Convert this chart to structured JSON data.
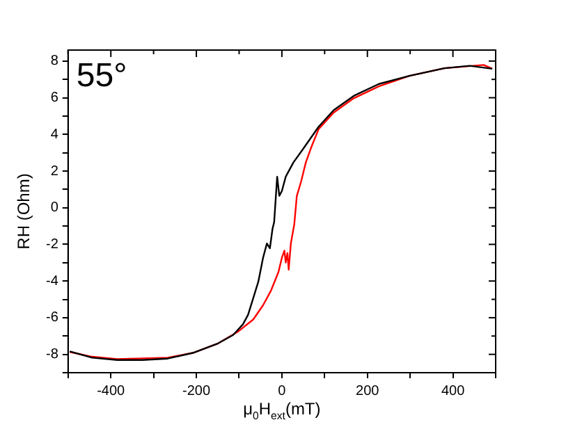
{
  "chart_data": {
    "type": "line",
    "xlabel": "μ$_{0}$H$_{ext}$(mT)",
    "ylabel": "RH (Ohm)",
    "annotations": [
      "55°"
    ],
    "xlim": [
      -500,
      500
    ],
    "xticks": [
      {
        "value": -500,
        "label": null
      },
      -400,
      {
        "value": -300,
        "label": null
      },
      -200,
      {
        "value": -100,
        "label": null
      },
      0,
      {
        "value": 100,
        "label": null
      },
      200,
      {
        "value": 300,
        "label": null
      },
      400,
      {
        "value": 500,
        "label": null
      }
    ],
    "ylim": [
      -9,
      8.6
    ],
    "yticks": [
      {
        "value": -9,
        "label": null
      },
      -8,
      {
        "value": -7,
        "label": null
      },
      -6,
      {
        "value": -5,
        "label": null
      },
      -4,
      {
        "value": -3,
        "label": null
      },
      -2,
      {
        "value": -1,
        "label": null
      },
      0,
      {
        "value": 1,
        "label": null
      },
      2,
      {
        "value": 3,
        "label": null
      },
      4,
      {
        "value": 5,
        "label": null
      },
      6,
      {
        "value": 7,
        "label": null
      },
      8
    ],
    "series": [
      {
        "color": "#000000",
        "x": [
          -496,
          -444,
          -385,
          -326,
          -267,
          -208,
          -149,
          -114,
          -91,
          -79,
          -67,
          -55,
          -44,
          -35,
          -28,
          -22,
          -18,
          -14,
          -11,
          -6,
          0,
          9,
          27,
          51,
          86,
          121,
          168,
          227,
          298,
          380,
          439,
          492
        ],
        "values": [
          -7.84,
          -8.18,
          -8.31,
          -8.31,
          -8.23,
          -7.92,
          -7.4,
          -6.94,
          -6.36,
          -5.84,
          -4.94,
          -4.03,
          -2.73,
          -1.95,
          -2.21,
          -1.17,
          -0.78,
          0.65,
          1.69,
          0.65,
          0.91,
          1.69,
          2.47,
          3.25,
          4.42,
          5.32,
          6.1,
          6.75,
          7.19,
          7.61,
          7.74,
          7.58
        ]
      },
      {
        "color": "#ff0000",
        "x": [
          -496,
          -444,
          -385,
          -267,
          -208,
          -149,
          -102,
          -67,
          -44,
          -26,
          -8,
          0,
          6,
          9,
          13,
          16,
          21,
          29,
          35,
          45,
          56,
          68,
          86,
          121,
          168,
          227,
          298,
          380,
          472,
          492
        ],
        "values": [
          -7.87,
          -8.13,
          -8.26,
          -8.18,
          -7.92,
          -7.4,
          -6.75,
          -6.1,
          -5.32,
          -4.55,
          -3.51,
          -2.73,
          -2.34,
          -2.99,
          -2.47,
          -3.38,
          -1.95,
          -0.91,
          0.65,
          1.43,
          2.47,
          3.25,
          4.29,
          5.19,
          5.97,
          6.62,
          7.19,
          7.61,
          7.79,
          7.58
        ]
      }
    ]
  }
}
